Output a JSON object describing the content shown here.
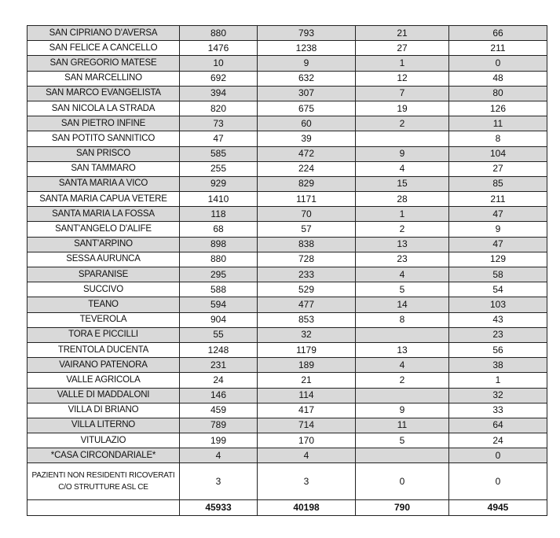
{
  "rows": [
    [
      "SAN CIPRIANO D'AVERSA",
      "880",
      "793",
      "21",
      "66"
    ],
    [
      "SAN FELICE A CANCELLO",
      "1476",
      "1238",
      "27",
      "211"
    ],
    [
      "SAN GREGORIO MATESE",
      "10",
      "9",
      "1",
      "0"
    ],
    [
      "SAN MARCELLINO",
      "692",
      "632",
      "12",
      "48"
    ],
    [
      "SAN MARCO EVANGELISTA",
      "394",
      "307",
      "7",
      "80"
    ],
    [
      "SAN NICOLA LA STRADA",
      "820",
      "675",
      "19",
      "126"
    ],
    [
      "SAN PIETRO INFINE",
      "73",
      "60",
      "2",
      "11"
    ],
    [
      "SAN POTITO SANNITICO",
      "47",
      "39",
      "",
      "8"
    ],
    [
      "SAN PRISCO",
      "585",
      "472",
      "9",
      "104"
    ],
    [
      "SAN TAMMARO",
      "255",
      "224",
      "4",
      "27"
    ],
    [
      "SANTA MARIA A VICO",
      "929",
      "829",
      "15",
      "85"
    ],
    [
      "SANTA MARIA CAPUA VETERE",
      "1410",
      "1171",
      "28",
      "211"
    ],
    [
      "SANTA MARIA LA FOSSA",
      "118",
      "70",
      "1",
      "47"
    ],
    [
      "SANT'ANGELO D'ALIFE",
      "68",
      "57",
      "2",
      "9"
    ],
    [
      "SANT'ARPINO",
      "898",
      "838",
      "13",
      "47"
    ],
    [
      "SESSA AURUNCA",
      "880",
      "728",
      "23",
      "129"
    ],
    [
      "SPARANISE",
      "295",
      "233",
      "4",
      "58"
    ],
    [
      "SUCCIVO",
      "588",
      "529",
      "5",
      "54"
    ],
    [
      "TEANO",
      "594",
      "477",
      "14",
      "103"
    ],
    [
      "TEVEROLA",
      "904",
      "853",
      "8",
      "43"
    ],
    [
      "TORA E PICCILLI",
      "55",
      "32",
      "",
      "23"
    ],
    [
      "TRENTOLA DUCENTA",
      "1248",
      "1179",
      "13",
      "56"
    ],
    [
      "VAIRANO PATENORA",
      "231",
      "189",
      "4",
      "38"
    ],
    [
      "VALLE AGRICOLA",
      "24",
      "21",
      "2",
      "1"
    ],
    [
      "VALLE DI MADDALONI",
      "146",
      "114",
      "",
      "32"
    ],
    [
      "VILLA DI BRIANO",
      "459",
      "417",
      "9",
      "33"
    ],
    [
      "VILLA LITERNO",
      "789",
      "714",
      "11",
      "64"
    ],
    [
      "VITULAZIO",
      "199",
      "170",
      "5",
      "24"
    ],
    [
      "*CASA CIRCONDARIALE*",
      "4",
      "4",
      "",
      "0"
    ],
    [
      "PAZIENTI NON RESIDENTI RICOVERATI C/O STRUTTURE ASL CE",
      "3",
      "3",
      "0",
      "0"
    ]
  ],
  "totals": [
    "",
    "45933",
    "40198",
    "790",
    "4945"
  ],
  "colors": {
    "stripe": "#d9d9d9",
    "border": "#222222"
  }
}
